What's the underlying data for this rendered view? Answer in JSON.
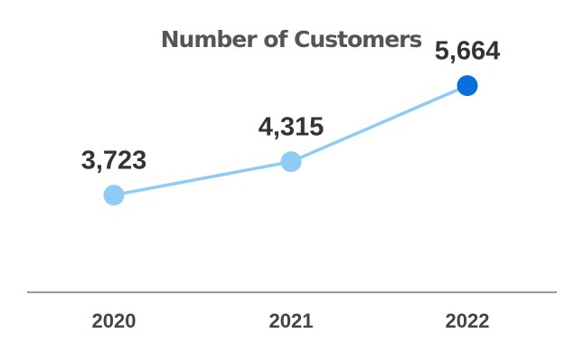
{
  "chart_data": {
    "type": "line",
    "title": "Number of Customers",
    "xlabel": "",
    "ylabel": "",
    "categories": [
      "2020",
      "2021",
      "2022"
    ],
    "series": [
      {
        "name": "Customers",
        "values": [
          3723,
          4315,
          5664
        ],
        "labels": [
          "3,723",
          "4,315",
          "5,664"
        ]
      }
    ],
    "ylim": [
      2000,
      6700
    ],
    "grid": false,
    "legend": "none",
    "colors": {
      "line": "#8ecbf5",
      "point": "#8ecbf5",
      "highlight_point": "#0a6fdc",
      "axis": "#999999",
      "title": "#555555",
      "label": "#333333",
      "tick": "#444444"
    },
    "highlight_index": 2
  }
}
